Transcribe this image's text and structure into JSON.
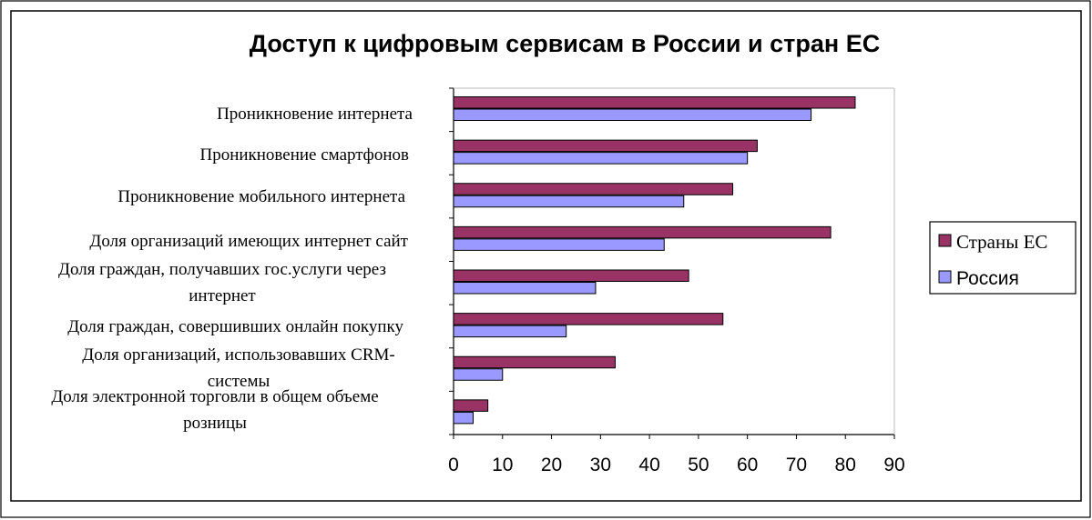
{
  "chart_data": {
    "type": "bar",
    "orientation": "horizontal",
    "title": "Доступ к цифровым сервисам в России и стран ЕС",
    "categories": [
      [
        "Проникновение интернета"
      ],
      [
        "Проникновение смартфонов"
      ],
      [
        "Проникновение мобильного интернета"
      ],
      [
        "Доля организаций имеющих интернет сайт"
      ],
      [
        "Доля граждан, получавших гос.услуги через",
        "интернет"
      ],
      [
        "Доля граждан, совершивших онлайн покупку"
      ],
      [
        "Доля организаций, использовавших CRM-",
        "системы"
      ],
      [
        "Доля электронной торговли в общем объеме",
        "розницы"
      ]
    ],
    "series": [
      {
        "name": "Страны ЕС",
        "color": "#993366",
        "values": [
          82,
          62,
          57,
          77,
          48,
          55,
          33,
          7
        ]
      },
      {
        "name": "Россия",
        "color": "#9999FF",
        "values": [
          73,
          60,
          47,
          43,
          29,
          23,
          10,
          4
        ]
      }
    ],
    "xlim": [
      0,
      90
    ],
    "xticks": [
      0,
      10,
      20,
      30,
      40,
      50,
      60,
      70,
      80,
      90
    ],
    "xlabel": "",
    "ylabel": "",
    "grid": false,
    "legend_position": "right"
  }
}
